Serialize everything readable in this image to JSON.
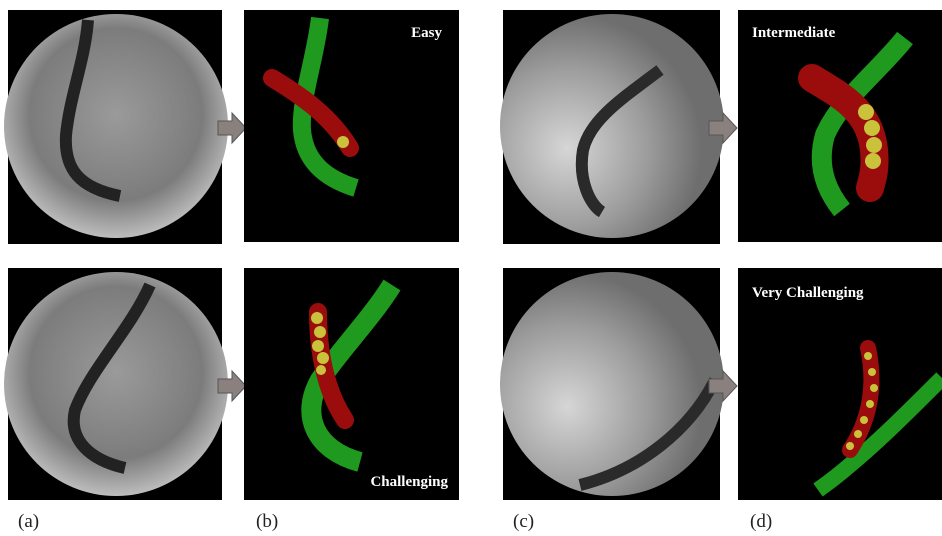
{
  "panels": {
    "labels": [
      "(a)",
      "(b)",
      "(c)",
      "(d)"
    ],
    "difficulty": [
      "Easy",
      "Intermediate",
      "Challenging",
      "Very Challenging"
    ]
  }
}
